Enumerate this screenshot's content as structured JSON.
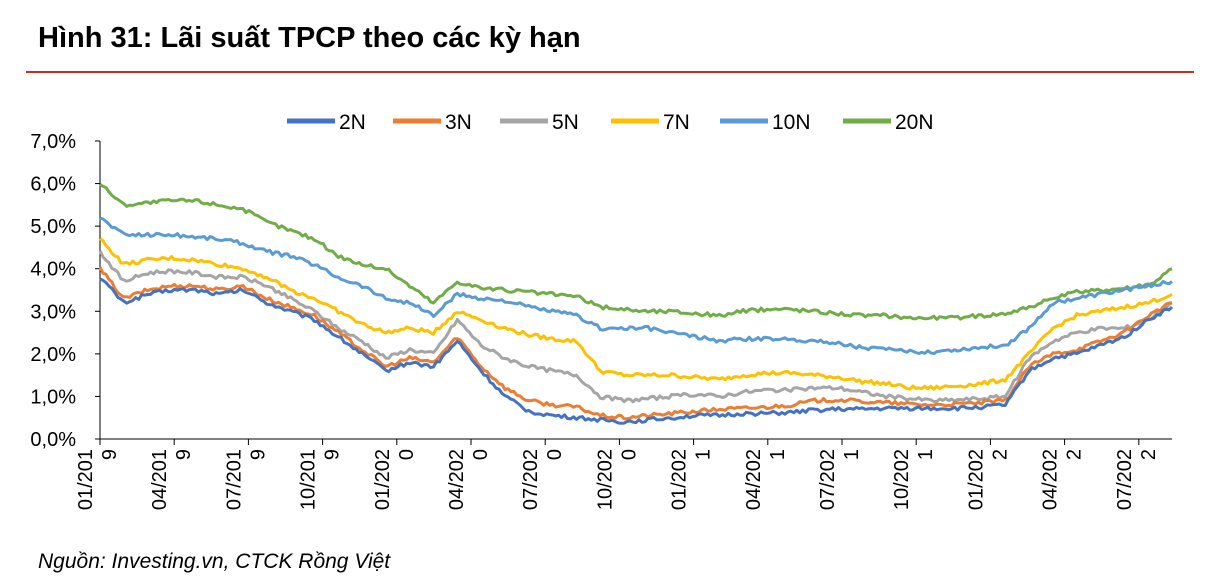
{
  "title": "Hình 31: Lãi suất TPCP theo các kỳ hạn",
  "source": "Nguồn: Investing.vn, CTCK Rồng Việt",
  "chart_data": {
    "type": "line",
    "ylim": [
      0,
      7
    ],
    "y_ticks": [
      "0,0%",
      "1,0%",
      "2,0%",
      "3,0%",
      "4,0%",
      "5,0%",
      "6,0%",
      "7,0%"
    ],
    "x_ticks": [
      [
        "01/201",
        "9"
      ],
      [
        "04/201",
        "9"
      ],
      [
        "07/201",
        "9"
      ],
      [
        "10/201",
        "9"
      ],
      [
        "01/202",
        "0"
      ],
      [
        "04/202",
        "0"
      ],
      [
        "07/202",
        "0"
      ],
      [
        "10/202",
        "0"
      ],
      [
        "01/202",
        "1"
      ],
      [
        "04/202",
        "1"
      ],
      [
        "07/202",
        "1"
      ],
      [
        "10/202",
        "1"
      ],
      [
        "01/202",
        "2"
      ],
      [
        "04/202",
        "2"
      ],
      [
        "07/202",
        "2"
      ]
    ],
    "x": [
      "01/2019",
      "02/2019",
      "03/2019",
      "04/2019",
      "05/2019",
      "06/2019",
      "07/2019",
      "08/2019",
      "09/2019",
      "10/2019",
      "11/2019",
      "12/2019",
      "01/2020",
      "02/2020",
      "03/2020",
      "04/2020",
      "05/2020",
      "06/2020",
      "07/2020",
      "08/2020",
      "09/2020",
      "10/2020",
      "11/2020",
      "12/2020",
      "01/2021",
      "02/2021",
      "03/2021",
      "04/2021",
      "05/2021",
      "06/2021",
      "07/2021",
      "08/2021",
      "09/2021",
      "10/2021",
      "11/2021",
      "12/2021",
      "01/2022",
      "02/2022",
      "03/2022",
      "04/2022",
      "05/2022",
      "06/2022",
      "07/2022",
      "08/2022",
      "09/2022",
      "10/2022"
    ],
    "legend_position": "top",
    "grid": false,
    "series": [
      {
        "name": "2N",
        "color": "#4472c4",
        "values": [
          3.8,
          3.2,
          3.4,
          3.5,
          3.5,
          3.4,
          3.5,
          3.2,
          3.0,
          2.8,
          2.4,
          2.0,
          1.6,
          1.8,
          1.7,
          2.3,
          1.6,
          1.0,
          0.65,
          0.55,
          0.5,
          0.45,
          0.4,
          0.45,
          0.5,
          0.55,
          0.55,
          0.6,
          0.6,
          0.62,
          0.68,
          0.7,
          0.7,
          0.72,
          0.72,
          0.72,
          0.72,
          0.75,
          0.8,
          1.6,
          1.9,
          2.0,
          2.2,
          2.4,
          2.8,
          3.1
        ]
      },
      {
        "name": "3N",
        "color": "#ed7d31",
        "values": [
          4.0,
          3.3,
          3.5,
          3.6,
          3.6,
          3.5,
          3.6,
          3.3,
          3.1,
          2.9,
          2.5,
          2.1,
          1.7,
          1.9,
          1.8,
          2.4,
          1.7,
          1.2,
          0.9,
          0.8,
          0.75,
          0.55,
          0.5,
          0.55,
          0.6,
          0.65,
          0.7,
          0.72,
          0.75,
          0.8,
          0.9,
          0.92,
          0.88,
          0.85,
          0.82,
          0.8,
          0.82,
          0.85,
          0.9,
          1.7,
          2.0,
          2.1,
          2.3,
          2.5,
          2.9,
          3.2
        ]
      },
      {
        "name": "5N",
        "color": "#a5a5a5",
        "values": [
          4.4,
          3.7,
          3.9,
          3.95,
          3.9,
          3.8,
          3.8,
          3.6,
          3.3,
          3.0,
          2.6,
          2.3,
          1.9,
          2.1,
          2.0,
          2.8,
          2.2,
          1.9,
          1.7,
          1.6,
          1.5,
          1.0,
          0.9,
          0.95,
          1.0,
          1.05,
          1.0,
          1.1,
          1.15,
          1.15,
          1.2,
          1.2,
          1.1,
          1.0,
          0.95,
          0.9,
          0.92,
          0.95,
          1.0,
          1.9,
          2.3,
          2.5,
          2.6,
          2.6,
          2.8,
          3.2
        ]
      },
      {
        "name": "7N",
        "color": "#ffc000",
        "values": [
          4.7,
          4.1,
          4.2,
          4.25,
          4.2,
          4.1,
          4.0,
          3.8,
          3.5,
          3.3,
          3.0,
          2.7,
          2.5,
          2.6,
          2.5,
          3.0,
          2.8,
          2.6,
          2.45,
          2.35,
          2.3,
          1.6,
          1.5,
          1.5,
          1.5,
          1.45,
          1.4,
          1.5,
          1.55,
          1.55,
          1.5,
          1.45,
          1.35,
          1.3,
          1.2,
          1.2,
          1.25,
          1.3,
          1.4,
          2.0,
          2.6,
          2.9,
          3.0,
          3.1,
          3.2,
          3.4
        ]
      },
      {
        "name": "10N",
        "color": "#5b9bd5",
        "values": [
          5.2,
          4.8,
          4.8,
          4.8,
          4.75,
          4.7,
          4.6,
          4.4,
          4.3,
          4.1,
          3.8,
          3.6,
          3.3,
          3.2,
          2.9,
          3.4,
          3.3,
          3.25,
          3.1,
          3.0,
          2.9,
          2.6,
          2.6,
          2.6,
          2.5,
          2.4,
          2.3,
          2.35,
          2.35,
          2.35,
          2.3,
          2.25,
          2.15,
          2.1,
          2.05,
          2.05,
          2.1,
          2.15,
          2.2,
          2.6,
          3.2,
          3.3,
          3.4,
          3.5,
          3.6,
          3.7
        ]
      },
      {
        "name": "20N",
        "color": "#70ad47",
        "values": [
          6.0,
          5.5,
          5.55,
          5.6,
          5.6,
          5.5,
          5.4,
          5.1,
          4.9,
          4.7,
          4.3,
          4.1,
          4.0,
          3.6,
          3.2,
          3.7,
          3.55,
          3.5,
          3.45,
          3.4,
          3.35,
          3.1,
          3.05,
          3.0,
          3.0,
          2.95,
          2.9,
          3.0,
          3.05,
          3.05,
          3.0,
          2.95,
          2.9,
          2.9,
          2.85,
          2.85,
          2.85,
          2.9,
          2.95,
          3.1,
          3.3,
          3.45,
          3.5,
          3.55,
          3.6,
          4.0
        ]
      }
    ]
  }
}
